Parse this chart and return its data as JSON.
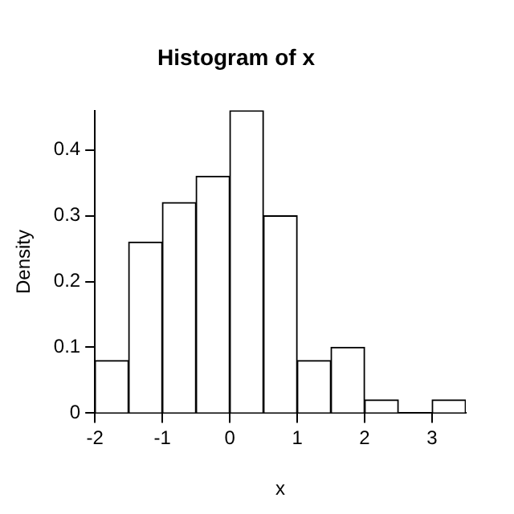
{
  "chart_data": {
    "type": "histogram",
    "title": "Histogram of x",
    "xlabel": "x",
    "ylabel": "Density",
    "bins": [
      -2,
      -1.5,
      -1,
      -0.5,
      0,
      0.5,
      1,
      1.5,
      2,
      2.5,
      3,
      3.5
    ],
    "values": [
      0.08,
      0.26,
      0.32,
      0.36,
      0.46,
      0.3,
      0.08,
      0.1,
      0.02,
      0,
      0.02
    ],
    "color": "#ffffff",
    "xlim": [
      -2,
      3.5
    ],
    "xticks": [
      -2,
      -1,
      0,
      1,
      2,
      3
    ],
    "ylim": [
      0,
      0.46
    ],
    "yticks": [
      0,
      0.1,
      0.2,
      0.3,
      0.4
    ]
  }
}
